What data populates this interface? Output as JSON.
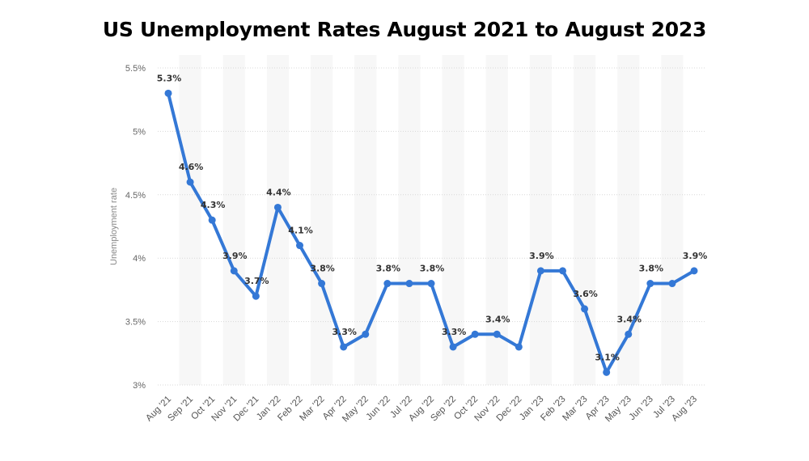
{
  "chart_data": {
    "type": "line",
    "title": "US Unemployment Rates August 2021 to August 2023",
    "ylabel": "Unemployment rate",
    "xlabel": "",
    "ylim": [
      3,
      5.5
    ],
    "yticks": [
      "3%",
      "3.5%",
      "4%",
      "4.5%",
      "5%",
      "5.5%"
    ],
    "ytick_values": [
      3,
      3.5,
      4,
      4.5,
      5,
      5.5
    ],
    "grid": true,
    "line_color": "#3478d6",
    "categories": [
      "Aug '21",
      "Sep '21",
      "Oct '21",
      "Nov '21",
      "Dec '21",
      "Jan '22",
      "Feb '22",
      "Mar '22",
      "Apr '22",
      "May '22",
      "Jun '22",
      "Jul '22",
      "Aug '22",
      "Sep '22",
      "Oct '22",
      "Nov '22",
      "Dec '22",
      "Jan '23",
      "Feb '23",
      "Mar '23",
      "Apr '23",
      "May '23",
      "Jun '23",
      "Jul '23",
      "Aug '23"
    ],
    "values": [
      5.3,
      4.6,
      4.3,
      3.9,
      3.7,
      4.4,
      4.1,
      3.8,
      3.3,
      3.4,
      3.8,
      3.8,
      3.8,
      3.3,
      3.4,
      3.4,
      3.3,
      3.9,
      3.9,
      3.6,
      3.1,
      3.4,
      3.8,
      3.8,
      3.9
    ],
    "data_labels": [
      "5.3%",
      "4.6%",
      "4.3%",
      "3.9%",
      "3.7%",
      "4.4%",
      "4.1%",
      "3.8%",
      "3.3%",
      "",
      "3.8%",
      "",
      "3.8%",
      "3.3%",
      "",
      "3.4%",
      "",
      "3.9%",
      "",
      "3.6%",
      "3.1%",
      "3.4%",
      "3.8%",
      "",
      "3.9%"
    ]
  }
}
